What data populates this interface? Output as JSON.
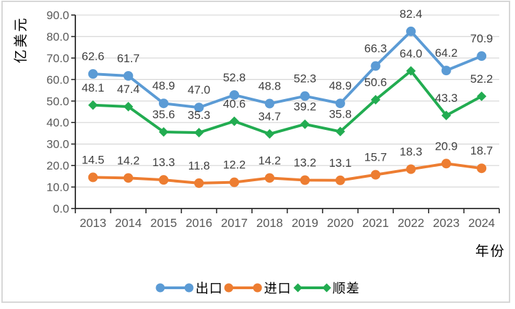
{
  "chart": {
    "y_axis_title": "亿美元",
    "x_axis_title": "年份"
  },
  "colors": {
    "export_blue": "#5B9BD5",
    "import_orange": "#ED7D31",
    "surplus_green": "#22AC51",
    "gridline": "#D9D9D9",
    "axis_line": "#262626",
    "tick_label": "#595959",
    "data_label": "#404040",
    "frame_border": "#D6D6D6"
  },
  "chart_data": {
    "type": "line",
    "title": "",
    "xlabel": "年份",
    "ylabel": "亿美元",
    "categories": [
      "2013",
      "2014",
      "2015",
      "2016",
      "2017",
      "2018",
      "2019",
      "2020",
      "2021",
      "2022",
      "2023",
      "2024"
    ],
    "series": [
      {
        "key": "export",
        "name": "出口",
        "marker": "circle",
        "color": "#5B9BD5",
        "values": [
          62.6,
          61.7,
          48.9,
          47.0,
          52.8,
          48.8,
          52.3,
          48.9,
          66.3,
          82.4,
          64.2,
          70.9
        ]
      },
      {
        "key": "import",
        "name": "进口",
        "marker": "circle",
        "color": "#ED7D31",
        "values": [
          14.5,
          14.2,
          13.3,
          11.8,
          12.2,
          14.2,
          13.2,
          13.1,
          15.7,
          18.3,
          20.9,
          18.7
        ]
      },
      {
        "key": "surplus",
        "name": "顺差",
        "marker": "diamond",
        "color": "#22AC51",
        "values": [
          48.1,
          47.4,
          35.6,
          35.3,
          40.6,
          34.7,
          39.2,
          35.8,
          50.6,
          64.0,
          43.3,
          52.2
        ]
      }
    ],
    "ylim": [
      0,
      90
    ],
    "y_tick_step": 10,
    "y_tick_format": "one_decimal",
    "data_labels": true,
    "grid": true,
    "legend_position": "bottom"
  }
}
